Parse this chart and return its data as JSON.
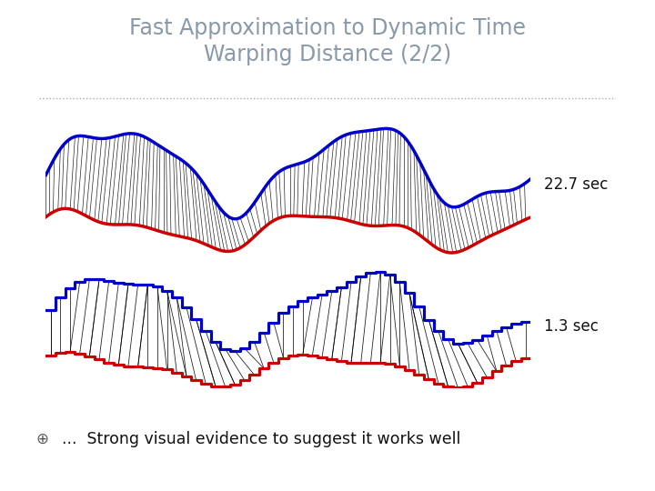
{
  "title_line1": "Fast Approximation to Dynamic Time",
  "title_line2": "Warping Distance (2/2)",
  "title_color": "#8899aa",
  "bg_color": "#ffffff",
  "label_22": "22.7 sec",
  "label_13": "1.3 sec",
  "bottom_text": "...  Strong visual evidence to suggest it works well",
  "bullet": "⊕",
  "blue_color": "#0000cc",
  "red_color": "#cc0000",
  "line_color": "#000000",
  "n_warp_lines": 120,
  "n_warp_lines2": 70
}
